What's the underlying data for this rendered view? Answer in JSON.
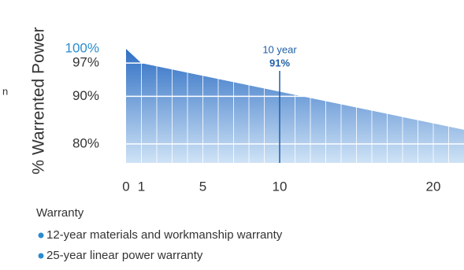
{
  "chart_data": {
    "type": "area",
    "y_label": "% Warrented Power",
    "side_fragment": "n",
    "legend_title": "Warranty",
    "notes": [
      "12-year materials and workmanship warranty",
      "25-year linear power warranty"
    ],
    "x": [
      0,
      1,
      10,
      22
    ],
    "values": [
      100,
      97,
      91,
      83
    ],
    "color": "#2f6fc4",
    "xlim": [
      0,
      22
    ],
    "xticks": [
      0,
      1,
      5,
      10,
      20
    ],
    "ylim": [
      76,
      100
    ],
    "yticks": [
      {
        "value": 100,
        "label": "100%"
      },
      {
        "value": 97,
        "label": "97%"
      },
      {
        "value": 90,
        "label": "90%"
      },
      {
        "value": 80,
        "label": "80%"
      }
    ],
    "annotation": {
      "x": 10,
      "text": "10 year",
      "value_label": "91%",
      "value": 91,
      "color": "#1f5fa8"
    }
  }
}
